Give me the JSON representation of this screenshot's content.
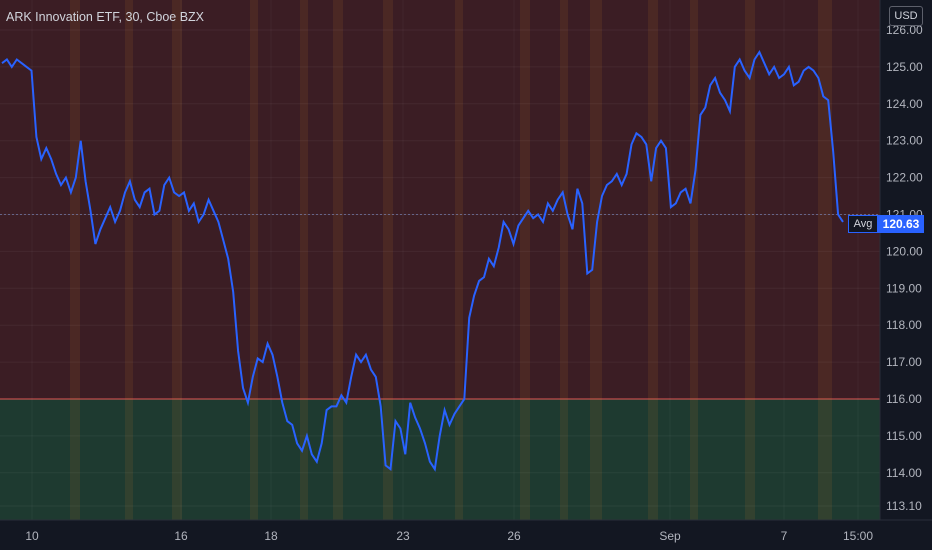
{
  "header": {
    "title": "ARK Innovation ETF, 30, Cboe BZX"
  },
  "currency": "USD",
  "last_price": {
    "label": "Avg",
    "value": "120.63"
  },
  "colors": {
    "background": "#131722",
    "upper_zone": "#3b1d24",
    "lower_zone": "#1e3a30",
    "zone_border": "#e0504c",
    "line": "#2962ff",
    "axis_text": "#b2b5be",
    "stripe": "#c77a2a"
  },
  "chart_data": {
    "type": "line",
    "title": "ARK Innovation ETF, 30, Cboe BZX",
    "y_ticks": [
      "126.00",
      "125.00",
      "124.00",
      "123.00",
      "122.00",
      "121.00",
      "120.00",
      "119.00",
      "118.00",
      "117.00",
      "116.00",
      "115.00",
      "114.00",
      "113.10"
    ],
    "x_ticks": [
      "10",
      "16",
      "18",
      "23",
      "26",
      "Sep",
      "7",
      "15:00"
    ],
    "ylim": [
      113.1,
      126.2
    ],
    "zones": [
      {
        "from": 116.0,
        "to": 126.2,
        "color": "upper"
      },
      {
        "from": 113.1,
        "to": 116.0,
        "color": "lower"
      }
    ],
    "avg_line": 121.0,
    "series": [
      {
        "values": [
          125.1,
          125.2,
          125.0,
          125.2,
          125.1,
          125.0,
          124.9,
          123.1,
          122.5,
          122.8,
          122.5,
          122.1,
          121.8,
          122.0,
          121.6,
          122.0,
          123.0,
          121.9,
          121.1,
          120.2,
          120.6,
          120.9,
          121.2,
          120.8,
          121.1,
          121.6,
          121.9,
          121.4,
          121.2,
          121.6,
          121.7,
          121.0,
          121.1,
          121.8,
          122.0,
          121.6,
          121.5,
          121.6,
          121.1,
          121.3,
          120.8,
          121.0,
          121.4,
          121.1,
          120.8,
          120.3,
          119.8,
          118.9,
          117.3,
          116.3,
          115.9,
          116.6,
          117.1,
          117.0,
          117.5,
          117.2,
          116.6,
          115.9,
          115.4,
          115.3,
          114.8,
          114.6,
          115.0,
          114.5,
          114.3,
          114.8,
          115.7,
          115.8,
          115.8,
          116.1,
          115.9,
          116.6,
          117.2,
          117.0,
          117.2,
          116.8,
          116.6,
          115.8,
          114.2,
          114.1,
          115.4,
          115.2,
          114.5,
          115.9,
          115.5,
          115.2,
          114.8,
          114.3,
          114.1,
          115.0,
          115.7,
          115.3,
          115.6,
          115.8,
          116.0,
          118.2,
          118.8,
          119.2,
          119.3,
          119.8,
          119.6,
          120.1,
          120.8,
          120.6,
          120.2,
          120.7,
          120.9,
          121.1,
          120.9,
          121.0,
          120.8,
          121.3,
          121.1,
          121.4,
          121.6,
          121.0,
          120.6,
          121.7,
          121.3,
          119.4,
          119.5,
          120.8,
          121.5,
          121.8,
          121.9,
          122.1,
          121.8,
          122.1,
          122.9,
          123.2,
          123.1,
          122.9,
          121.9,
          122.8,
          123.0,
          122.8,
          121.2,
          121.3,
          121.6,
          121.7,
          121.3,
          122.2,
          123.7,
          123.9,
          124.5,
          124.7,
          124.3,
          124.1,
          123.8,
          125.0,
          125.2,
          124.9,
          124.7,
          125.2,
          125.4,
          125.1,
          124.8,
          125.0,
          124.7,
          124.8,
          125.0,
          124.5,
          124.6,
          124.9,
          125.0,
          124.9,
          124.7,
          124.2,
          124.1,
          122.7,
          121.0,
          120.8
        ]
      }
    ]
  }
}
